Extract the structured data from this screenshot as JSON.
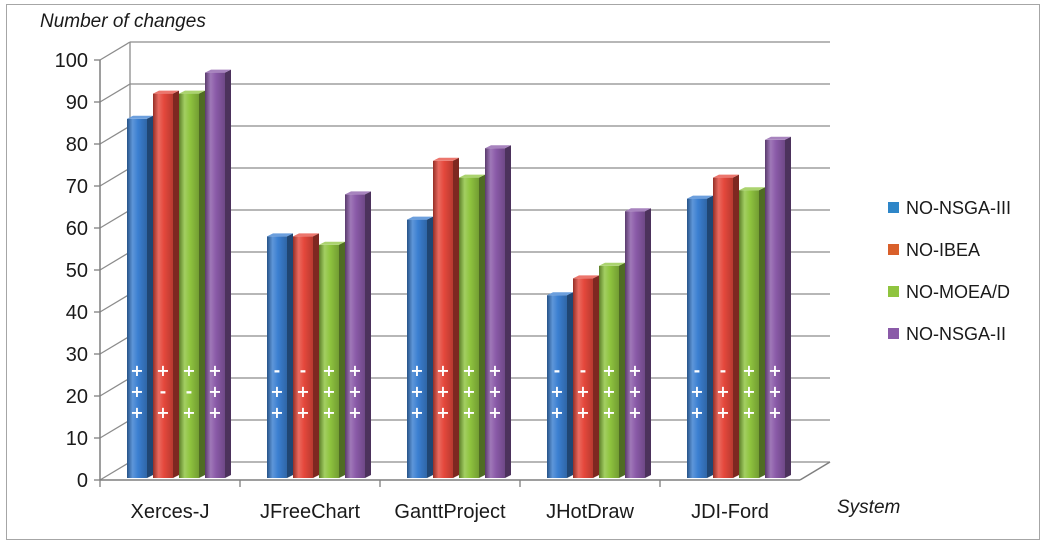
{
  "chart_data": {
    "type": "bar",
    "ylabel": "Number of changes",
    "xlabel": "System",
    "ylim": [
      0,
      100
    ],
    "yticks": [
      0,
      10,
      20,
      30,
      40,
      50,
      60,
      70,
      80,
      90,
      100
    ],
    "grid": true,
    "legend_position": "right",
    "categories": [
      "Xerces-J",
      "JFreeChart",
      "GanttProject",
      "JHotDraw",
      "JDI-Ford"
    ],
    "series": [
      {
        "name": "NO-NSGA-III",
        "color": "#3b7fd1",
        "values": [
          86,
          58,
          62,
          44,
          67
        ],
        "marks": [
          [
            "+",
            "+",
            "+"
          ],
          [
            "-",
            "+",
            "+"
          ],
          [
            "+",
            "+",
            "+"
          ],
          [
            "-",
            "+",
            "+"
          ],
          [
            "-",
            "+",
            "+"
          ]
        ]
      },
      {
        "name": "NO-IBEA",
        "color": "#e5483c",
        "values": [
          92,
          58,
          76,
          48,
          72
        ],
        "marks": [
          [
            "+",
            "-",
            "+"
          ],
          [
            "-",
            "+",
            "+"
          ],
          [
            "+",
            "+",
            "+"
          ],
          [
            "-",
            "+",
            "+"
          ],
          [
            "-",
            "+",
            "+"
          ]
        ]
      },
      {
        "name": "NO-MOEA/D",
        "color": "#8fc43f",
        "values": [
          92,
          56,
          72,
          51,
          69
        ],
        "marks": [
          [
            "+",
            "-",
            "+"
          ],
          [
            "+",
            "+",
            "+"
          ],
          [
            "+",
            "+",
            "+"
          ],
          [
            "+",
            "+",
            "+"
          ],
          [
            "+",
            "+",
            "+"
          ]
        ]
      },
      {
        "name": "NO-NSGA-II",
        "color": "#8a5aa8",
        "values": [
          97,
          68,
          79,
          64,
          81
        ],
        "marks": [
          [
            "+",
            "+",
            "+"
          ],
          [
            "+",
            "+",
            "+"
          ],
          [
            "+",
            "+",
            "+"
          ],
          [
            "+",
            "+",
            "+"
          ],
          [
            "+",
            "+",
            "+"
          ]
        ]
      }
    ]
  },
  "legend_colors": [
    "#2e86c8",
    "#d9602b",
    "#8fc43f",
    "#8a5aa8"
  ]
}
